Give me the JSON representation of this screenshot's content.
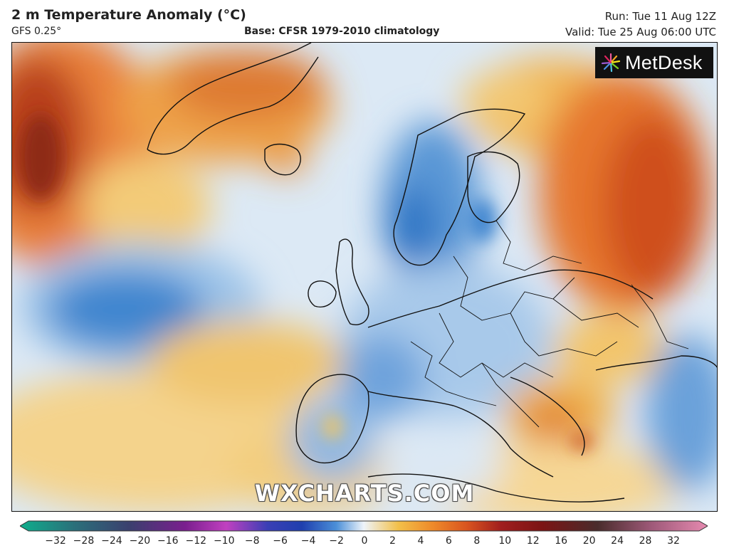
{
  "header": {
    "title": "2 m Temperature Anomaly (°C)",
    "model": "GFS 0.25°",
    "base": "Base: CFSR 1979-2010 climatology",
    "run": "Run: Tue 11 Aug 12Z",
    "valid": "Valid: Tue 25 Aug 06:00 UTC"
  },
  "logo": {
    "text": "MetDesk",
    "icon": "starburst-icon"
  },
  "watermark": "WXCHARTS.COM",
  "colorbar": {
    "ticks": [
      "−32",
      "−28",
      "−24",
      "−20",
      "−16",
      "−12",
      "−10",
      "−8",
      "−6",
      "−4",
      "−2",
      "0",
      "2",
      "4",
      "6",
      "8",
      "10",
      "12",
      "16",
      "20",
      "24",
      "28",
      "32"
    ],
    "colors": {
      "cold_extreme": "#0fae8c",
      "very_cold": "#7a1f8e",
      "cold": "#1f3fae",
      "cool": "#4b8fd8",
      "neutral": "#eef4fa",
      "warm": "#f2c04a",
      "hot": "#d9541f",
      "very_hot": "#7b1414",
      "hot_extreme": "#e68ab0"
    }
  }
}
